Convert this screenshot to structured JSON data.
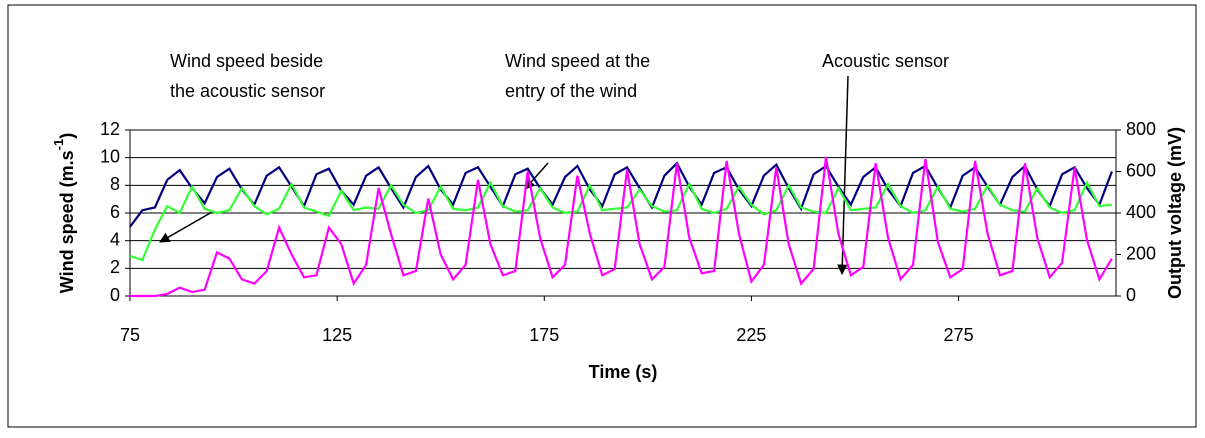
{
  "chart_data": {
    "type": "line",
    "x_label": "Time (s)",
    "y_label": {
      "text": "Wind speed (m.s",
      "sup": "-1",
      "end": ")"
    },
    "y2_label": "Output voltage (mV)",
    "annotations": [
      {
        "lines": [
          "Wind speed beside",
          "the acoustic sensor"
        ]
      },
      {
        "lines": [
          "Wind speed at the",
          "entry of the wind"
        ]
      },
      {
        "lines": [
          "Acoustic sensor"
        ]
      }
    ],
    "xlim": [
      75,
      313
    ],
    "xticks": [
      75,
      125,
      175,
      225,
      275
    ],
    "ylim": [
      0,
      12
    ],
    "yticks": [
      0,
      2,
      4,
      6,
      8,
      10,
      12
    ],
    "y2lim": [
      0,
      800
    ],
    "y2ticks": [
      0,
      200,
      400,
      600,
      800
    ],
    "grid": true,
    "x": [
      75,
      78,
      81,
      84,
      87,
      90,
      93,
      96,
      99,
      102,
      105,
      108,
      111,
      114,
      117,
      120,
      123,
      126,
      129,
      132,
      135,
      138,
      141,
      144,
      147,
      150,
      153,
      156,
      159,
      162,
      165,
      168,
      171,
      174,
      177,
      180,
      183,
      186,
      189,
      192,
      195,
      198,
      201,
      204,
      207,
      210,
      213,
      216,
      219,
      222,
      225,
      228,
      231,
      234,
      237,
      240,
      243,
      246,
      249,
      252,
      255,
      258,
      261,
      264,
      267,
      270,
      273,
      276,
      279,
      282,
      285,
      288,
      291,
      294,
      297,
      300,
      303,
      306,
      309,
      312
    ],
    "series": [
      {
        "color": "#000080",
        "values": [
          5.0,
          6.2,
          6.4,
          8.4,
          9.1,
          7.8,
          6.7,
          8.6,
          9.2,
          7.7,
          6.6,
          8.7,
          9.3,
          7.9,
          6.5,
          8.8,
          9.2,
          7.6,
          6.6,
          8.7,
          9.3,
          7.8,
          6.4,
          8.6,
          9.4,
          7.7,
          6.6,
          8.9,
          9.3,
          7.9,
          6.5,
          8.8,
          9.2,
          7.8,
          6.6,
          8.6,
          9.4,
          7.7,
          6.5,
          8.8,
          9.3,
          7.8,
          6.4,
          8.7,
          9.6,
          7.9,
          6.6,
          8.9,
          9.3,
          7.7,
          6.5,
          8.7,
          9.5,
          7.8,
          6.3,
          8.8,
          9.4,
          7.9,
          6.6,
          8.6,
          9.3,
          7.7,
          6.5,
          8.9,
          9.4,
          7.8,
          6.4,
          8.7,
          9.3,
          7.9,
          6.6,
          8.6,
          9.4,
          7.7,
          6.5,
          8.8,
          9.3,
          7.8,
          6.6,
          9.0
        ]
      },
      {
        "color": "#33ff33",
        "values": [
          2.9,
          2.6,
          4.8,
          6.5,
          6.0,
          7.9,
          6.3,
          6.0,
          6.2,
          7.8,
          6.5,
          5.9,
          6.3,
          8.1,
          6.4,
          6.1,
          5.8,
          7.6,
          6.2,
          6.4,
          6.3,
          8.0,
          6.6,
          6.0,
          6.2,
          7.9,
          6.3,
          6.2,
          6.4,
          8.2,
          6.5,
          6.1,
          6.2,
          7.8,
          6.4,
          6.0,
          6.1,
          8.0,
          6.2,
          6.3,
          6.4,
          7.7,
          6.5,
          6.1,
          6.2,
          8.1,
          6.3,
          6.0,
          6.3,
          7.9,
          6.6,
          5.9,
          6.2,
          8.0,
          6.4,
          6.1,
          6.0,
          7.8,
          6.2,
          6.3,
          6.4,
          8.1,
          6.5,
          6.0,
          6.2,
          7.9,
          6.3,
          6.1,
          6.3,
          8.0,
          6.6,
          6.2,
          6.1,
          7.8,
          6.4,
          6.0,
          6.2,
          8.2,
          6.5,
          6.6
        ]
      },
      {
        "color": "#ff00ff",
        "axis": "y2",
        "values": [
          0,
          0,
          0,
          10,
          40,
          20,
          30,
          210,
          180,
          80,
          60,
          120,
          330,
          200,
          90,
          100,
          330,
          250,
          60,
          150,
          520,
          300,
          100,
          120,
          470,
          200,
          80,
          150,
          560,
          250,
          100,
          120,
          600,
          280,
          90,
          150,
          580,
          300,
          100,
          130,
          610,
          250,
          80,
          140,
          640,
          280,
          110,
          120,
          650,
          300,
          70,
          150,
          620,
          250,
          60,
          130,
          670,
          300,
          100,
          140,
          640,
          280,
          80,
          150,
          660,
          260,
          90,
          130,
          650,
          300,
          100,
          120,
          640,
          280,
          90,
          160,
          620,
          270,
          80,
          180
        ]
      }
    ]
  }
}
